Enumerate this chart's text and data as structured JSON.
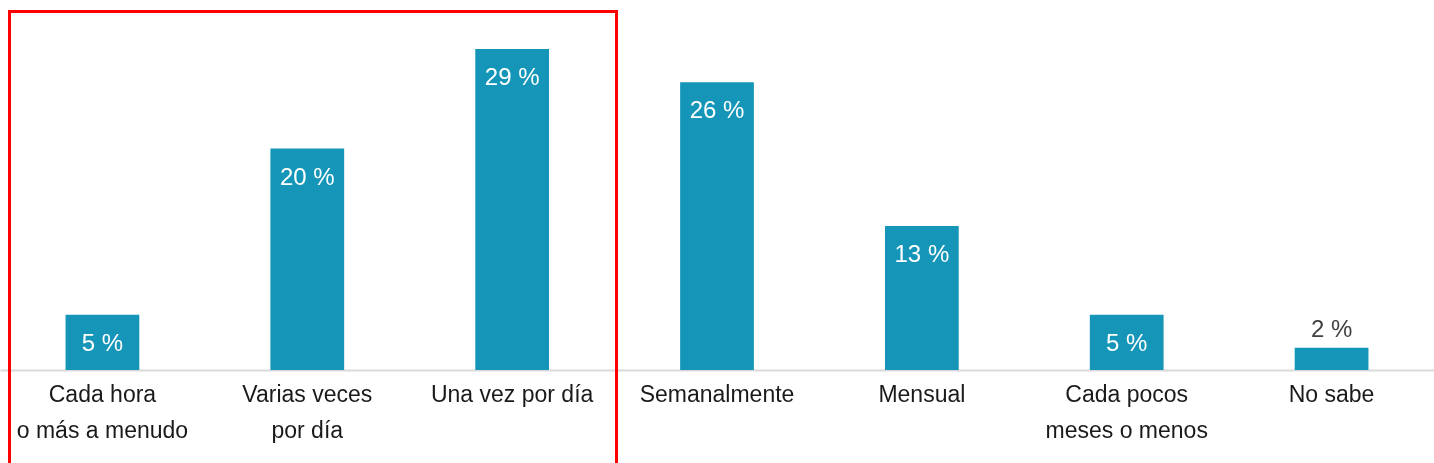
{
  "chart_data": {
    "type": "bar",
    "categories": [
      "Cada hora\no más a menudo",
      "Varias veces\npor día",
      "Una vez por día",
      "Semanalmente",
      "Mensual",
      "Cada pocos\nmeses o menos",
      "No sabe"
    ],
    "values": [
      5,
      20,
      29,
      26,
      13,
      5,
      2
    ],
    "value_labels": [
      "5 %",
      "20 %",
      "29 %",
      "26 %",
      "13 %",
      "5 %",
      "2 %"
    ],
    "color": "#1596b9",
    "tick_labels": "x"
  }
}
